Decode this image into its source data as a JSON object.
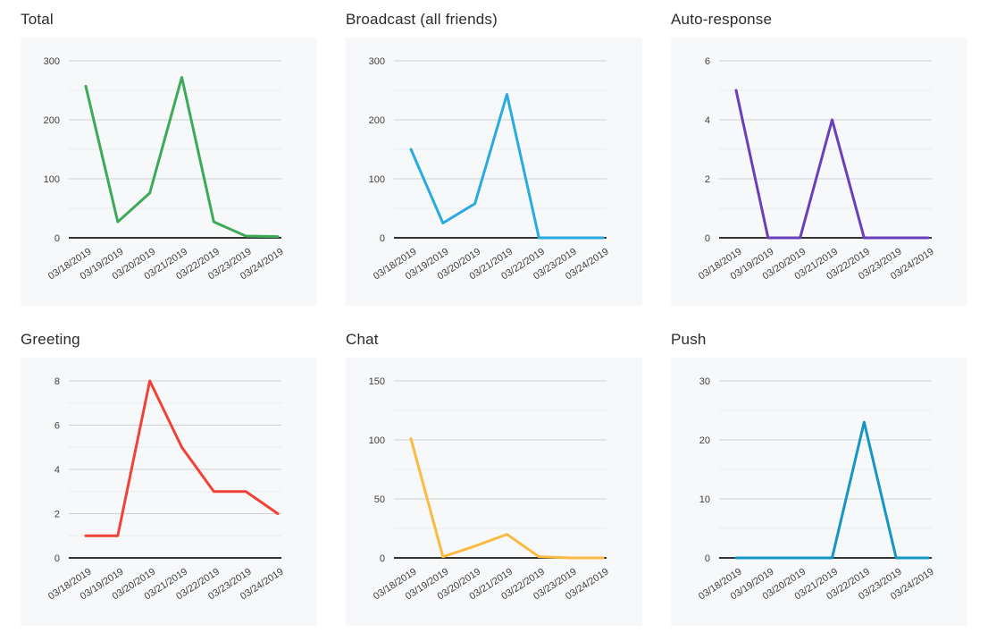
{
  "page": {
    "background": "#ffffff",
    "panel_background": "#f7f8f9",
    "grid_major_color": "#cfd1d3",
    "grid_minor_color": "#e9ebed",
    "axis_color": "#333333",
    "tick_label_color": "#3f3f3f",
    "title_color": "#2b2b2b"
  },
  "chart_data": [
    {
      "type": "line",
      "title": "Total",
      "color": "#3caa58",
      "categories": [
        "03/18/2019",
        "03/19/2019",
        "03/20/2019",
        "03/21/2019",
        "03/22/2019",
        "03/23/2019",
        "03/24/2019"
      ],
      "values": [
        257,
        27,
        76,
        272,
        27,
        3,
        2
      ],
      "ylim": [
        0,
        300
      ],
      "yticks": [
        0,
        100,
        200,
        300
      ],
      "yminor_step": 50,
      "grid": true,
      "legend": "none"
    },
    {
      "type": "line",
      "title": "Broadcast (all friends)",
      "color": "#29abe2",
      "categories": [
        "03/18/2019",
        "03/19/2019",
        "03/20/2019",
        "03/21/2019",
        "03/22/2019",
        "03/23/2019",
        "03/24/2019"
      ],
      "values": [
        150,
        25,
        58,
        243,
        0,
        0,
        0
      ],
      "ylim": [
        0,
        300
      ],
      "yticks": [
        0,
        100,
        200,
        300
      ],
      "yminor_step": 50,
      "grid": true,
      "legend": "none"
    },
    {
      "type": "line",
      "title": "Auto-response",
      "color": "#6a3fbb",
      "categories": [
        "03/18/2019",
        "03/19/2019",
        "03/20/2019",
        "03/21/2019",
        "03/22/2019",
        "03/23/2019",
        "03/24/2019"
      ],
      "values": [
        5,
        0,
        0,
        4,
        0,
        0,
        0
      ],
      "ylim": [
        0,
        6
      ],
      "yticks": [
        0,
        2,
        4,
        6
      ],
      "yminor_step": 1,
      "grid": true,
      "legend": "none"
    },
    {
      "type": "line",
      "title": "Greeting",
      "color": "#ef4136",
      "categories": [
        "03/18/2019",
        "03/19/2019",
        "03/20/2019",
        "03/21/2019",
        "03/22/2019",
        "03/23/2019",
        "03/24/2019"
      ],
      "values": [
        1,
        1,
        8,
        5,
        3,
        3,
        2
      ],
      "ylim": [
        0,
        8
      ],
      "yticks": [
        0,
        2,
        4,
        6,
        8
      ],
      "yminor_step": 1,
      "grid": true,
      "legend": "none"
    },
    {
      "type": "line",
      "title": "Chat",
      "color": "#fbba42",
      "categories": [
        "03/18/2019",
        "03/19/2019",
        "03/20/2019",
        "03/21/2019",
        "03/22/2019",
        "03/23/2019",
        "03/24/2019"
      ],
      "values": [
        101,
        1,
        10,
        20,
        1,
        0,
        0
      ],
      "ylim": [
        0,
        150
      ],
      "yticks": [
        0,
        50,
        100,
        150
      ],
      "yminor_step": 25,
      "grid": true,
      "legend": "none"
    },
    {
      "type": "line",
      "title": "Push",
      "color": "#1795c5",
      "categories": [
        "03/18/2019",
        "03/19/2019",
        "03/20/2019",
        "03/21/2019",
        "03/22/2019",
        "03/23/2019",
        "03/24/2019"
      ],
      "values": [
        0,
        0,
        0,
        0,
        23,
        0,
        0
      ],
      "ylim": [
        0,
        30
      ],
      "yticks": [
        0,
        10,
        20,
        30
      ],
      "yminor_step": 5,
      "grid": true,
      "legend": "none"
    }
  ]
}
